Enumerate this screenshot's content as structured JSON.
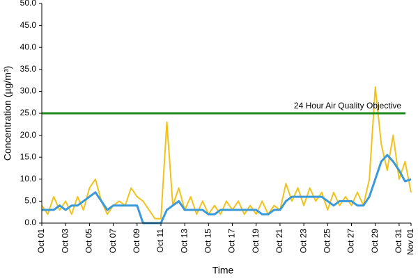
{
  "chart_data": {
    "type": "line",
    "y_label": "Concentration (µg/m³)",
    "x_label": "Time",
    "x": [
      1,
      1.5,
      2,
      2.5,
      3,
      3.5,
      4,
      4.5,
      5,
      5.5,
      6,
      6.5,
      7,
      7.5,
      8,
      8.5,
      9,
      9.5,
      10,
      10.5,
      11,
      11.5,
      12,
      12.5,
      13,
      13.5,
      14,
      14.5,
      15,
      15.5,
      16,
      16.5,
      17,
      17.5,
      18,
      18.5,
      19,
      19.5,
      20,
      20.5,
      21,
      21.5,
      22,
      22.5,
      23,
      23.5,
      24,
      24.5,
      25,
      25.5,
      26,
      26.5,
      27,
      27.5,
      28,
      28.5,
      29,
      29.5,
      30,
      30.5,
      31,
      31.5,
      32
    ],
    "series": [
      {
        "color": "#f2c21b",
        "values": [
          4,
          2,
          6,
          3,
          5,
          2,
          6,
          3,
          8,
          10,
          5,
          2,
          4,
          5,
          4,
          8,
          6,
          5,
          3,
          1,
          1,
          23,
          4,
          8,
          3,
          6,
          2,
          5,
          2,
          4,
          2,
          5,
          3,
          5,
          2,
          4,
          2,
          5,
          2,
          4,
          3,
          9,
          5,
          8,
          4,
          8,
          5,
          7,
          3,
          7,
          4,
          6,
          4,
          7,
          4,
          10,
          31,
          18,
          12,
          20,
          10,
          14,
          7
        ]
      },
      {
        "color": "#3a9ad9",
        "values": [
          3,
          3,
          3,
          4,
          3,
          4,
          4,
          5,
          6,
          7,
          5,
          3,
          4,
          4,
          4,
          4,
          4,
          0,
          0,
          0,
          0,
          3,
          4,
          5,
          3,
          3,
          3,
          3,
          2,
          2,
          3,
          3,
          3,
          3,
          3,
          3,
          3,
          2,
          2,
          3,
          3,
          5,
          6,
          6,
          6,
          6,
          6,
          6,
          5,
          4,
          5,
          5,
          5,
          4,
          4,
          6,
          10,
          14,
          15.5,
          14,
          12,
          9.5,
          10
        ]
      }
    ],
    "objective": {
      "value": 25,
      "text": "24 Hour Air Quality Objective",
      "color": "#1a8a1a"
    },
    "xlim": [
      1,
      32
    ],
    "xticks": [
      {
        "value": 1,
        "label": "Oct 01"
      },
      {
        "value": 3,
        "label": "Oct 03"
      },
      {
        "value": 5,
        "label": "Oct 05"
      },
      {
        "value": 7,
        "label": "Oct 07"
      },
      {
        "value": 9,
        "label": "Oct 09"
      },
      {
        "value": 11,
        "label": "Oct 11"
      },
      {
        "value": 13,
        "label": "Oct 13"
      },
      {
        "value": 15,
        "label": "Oct 15"
      },
      {
        "value": 17,
        "label": "Oct 17"
      },
      {
        "value": 19,
        "label": "Oct 19"
      },
      {
        "value": 21,
        "label": "Oct 21"
      },
      {
        "value": 23,
        "label": "Oct 23"
      },
      {
        "value": 25,
        "label": "Oct 25"
      },
      {
        "value": 27,
        "label": "Oct 27"
      },
      {
        "value": 29,
        "label": "Oct 29"
      },
      {
        "value": 31,
        "label": "Oct 31"
      },
      {
        "value": 32,
        "label": "Nov 01"
      }
    ],
    "ylim": [
      0,
      50
    ],
    "yticks": [
      {
        "value": 0,
        "label": "0.0"
      },
      {
        "value": 5,
        "label": "5.0"
      },
      {
        "value": 10,
        "label": "10.0"
      },
      {
        "value": 15,
        "label": "15.0"
      },
      {
        "value": 20,
        "label": "20.0"
      },
      {
        "value": 25,
        "label": "25.0"
      },
      {
        "value": 30,
        "label": "30.0"
      },
      {
        "value": 35,
        "label": "35.0"
      },
      {
        "value": 40,
        "label": "40.0"
      },
      {
        "value": 45,
        "label": "45.0"
      },
      {
        "value": 50,
        "label": "50.0"
      }
    ]
  }
}
